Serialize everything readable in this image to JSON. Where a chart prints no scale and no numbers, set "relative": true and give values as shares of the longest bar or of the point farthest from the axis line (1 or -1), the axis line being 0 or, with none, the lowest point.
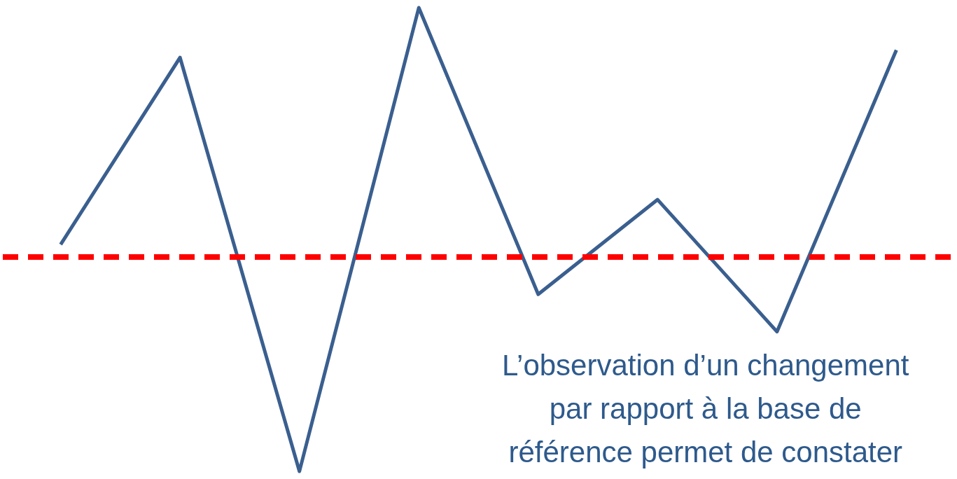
{
  "chart_data": {
    "type": "line",
    "relative": true,
    "categories": [
      null,
      null,
      null,
      null,
      null,
      null,
      null,
      null
    ],
    "series": [
      {
        "color": "#3a5f8f",
        "values": [
          0.05,
          0.8,
          -0.86,
          1.0,
          -0.15,
          0.23,
          -0.3,
          0.83
        ]
      }
    ],
    "ref_lines": [
      {
        "axis": "y",
        "value": 0,
        "color": "#ff0000",
        "line_style": "dashed"
      }
    ],
    "annotations": [
      "L’observation d’un changement\npar rapport à la base de\nréférence permet de constater"
    ],
    "line_style": "solid"
  }
}
